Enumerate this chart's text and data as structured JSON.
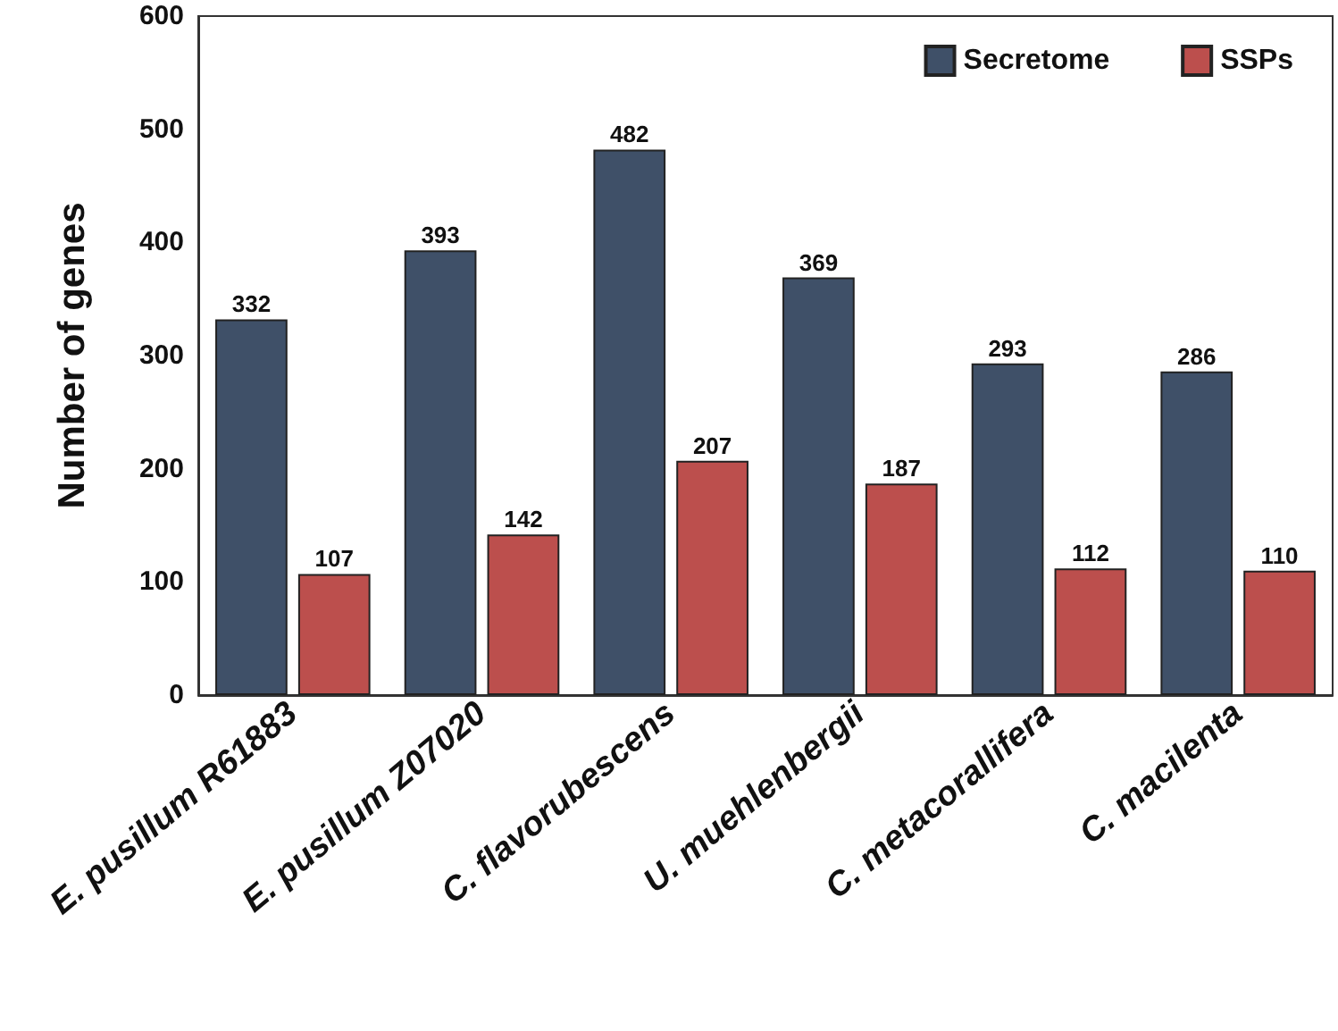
{
  "chart_data": {
    "type": "bar",
    "ylabel": "Number of genes",
    "categories": [
      "E. pusillum R61883",
      "E. pusillum Z07020",
      "C. flavorubescens",
      "U. muehlenbergii",
      "C. metacorallifera",
      "C. macilenta"
    ],
    "series": [
      {
        "name": "Secretome",
        "color": "#3f5068",
        "values": [
          332,
          393,
          482,
          369,
          293,
          286
        ]
      },
      {
        "name": "SSPs",
        "color": "#bc4f4d",
        "values": [
          107,
          142,
          207,
          187,
          112,
          110
        ]
      }
    ],
    "ylim": [
      0,
      600
    ],
    "yticks": [
      0,
      100,
      200,
      300,
      400,
      500,
      600
    ],
    "grid": false,
    "legend": "top right",
    "data_labels": true
  }
}
